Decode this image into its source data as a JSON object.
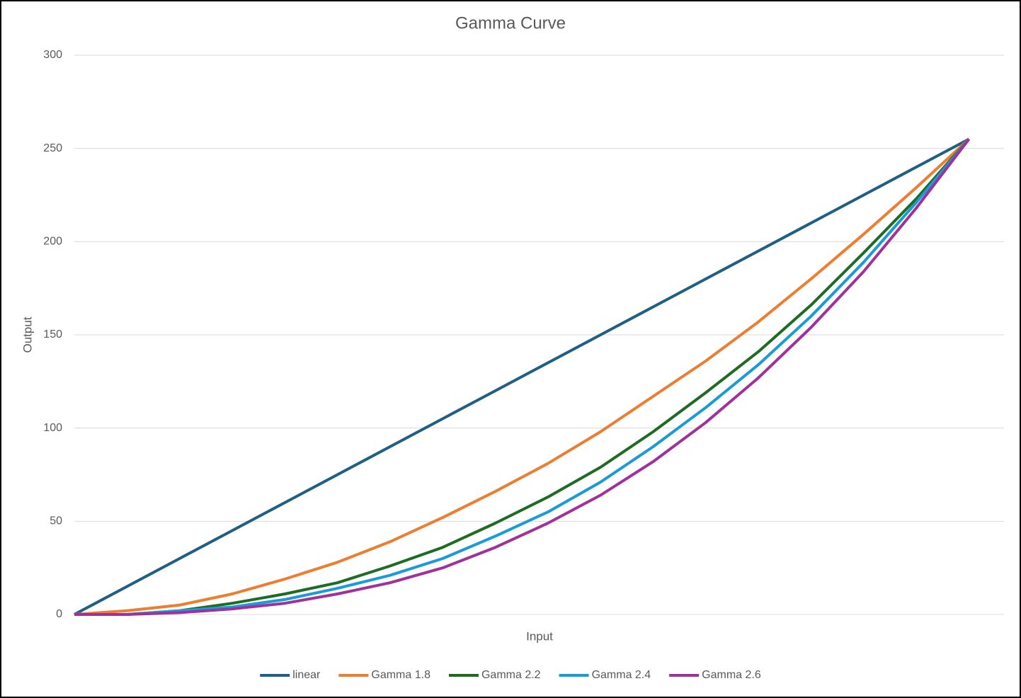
{
  "chart_data": {
    "type": "line",
    "title": "Gamma Curve",
    "x_label": "Input",
    "y_label": "Output",
    "x": [
      0,
      15,
      30,
      45,
      60,
      75,
      90,
      105,
      120,
      135,
      150,
      165,
      180,
      195,
      210,
      225,
      240,
      255
    ],
    "xlim": [
      0,
      265
    ],
    "ylim": [
      0,
      300
    ],
    "yticks": [
      0,
      50,
      100,
      150,
      200,
      250,
      300
    ],
    "grid": true,
    "legend": "bottom",
    "series": [
      {
        "name": "linear",
        "color": "#1f5f86",
        "values": [
          0,
          15,
          30,
          45,
          60,
          75,
          90,
          105,
          120,
          135,
          150,
          165,
          180,
          195,
          210,
          225,
          240,
          255
        ]
      },
      {
        "name": "Gamma 1.8",
        "color": "#ed7d31",
        "values": [
          0,
          2,
          5,
          11,
          19,
          28,
          39,
          52,
          66,
          81,
          98,
          117,
          136,
          157,
          180,
          204,
          229,
          255
        ]
      },
      {
        "name": "Gamma 2.2",
        "color": "#1e6b24",
        "values": [
          0,
          0,
          2,
          6,
          11,
          17,
          26,
          36,
          49,
          63,
          79,
          98,
          119,
          141,
          166,
          194,
          223,
          255
        ]
      },
      {
        "name": "Gamma 2.4",
        "color": "#1a9bd7",
        "values": [
          0,
          0,
          2,
          4,
          8,
          14,
          21,
          30,
          42,
          55,
          71,
          90,
          111,
          134,
          160,
          189,
          221,
          255
        ]
      },
      {
        "name": "Gamma 2.6",
        "color": "#a0309a",
        "values": [
          0,
          0,
          1,
          3,
          6,
          11,
          17,
          25,
          36,
          49,
          64,
          82,
          103,
          127,
          154,
          184,
          218,
          255
        ]
      }
    ]
  }
}
